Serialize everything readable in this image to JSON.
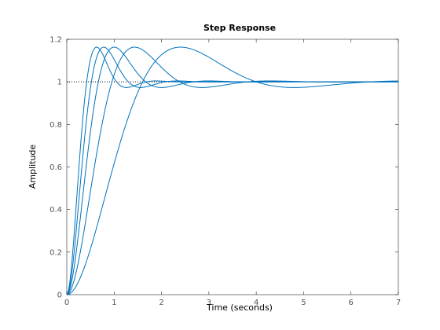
{
  "chart_data": {
    "type": "line",
    "title": "Step Response",
    "xlabel": "Time (seconds)",
    "ylabel": "Amplitude",
    "xlim": [
      0,
      7
    ],
    "ylim": [
      0,
      1.2
    ],
    "x_ticks": [
      0,
      1,
      2,
      3,
      4,
      5,
      6,
      7
    ],
    "x_tick_labels": [
      "0",
      "1",
      "2",
      "3",
      "4",
      "5",
      "6",
      "7"
    ],
    "y_ticks": [
      0,
      0.2,
      0.4,
      0.6,
      0.8,
      1.0,
      1.2
    ],
    "y_tick_labels": [
      "0",
      "0.2",
      "0.4",
      "0.6",
      "0.8",
      "1",
      "1.2"
    ],
    "grid": false,
    "line_color": "#0072bd",
    "reference_line": {
      "y": 1,
      "style": "dotted",
      "color": "#000000"
    },
    "series_model": "second-order step response, damping ratio 0.5",
    "series": [
      {
        "peak_time": 0.63,
        "peak_value": 1.16
      },
      {
        "peak_time": 0.78,
        "peak_value": 1.16
      },
      {
        "peak_time": 1.0,
        "peak_value": 1.16
      },
      {
        "peak_time": 1.43,
        "peak_value": 1.16
      },
      {
        "peak_time": 2.4,
        "peak_value": 1.16
      }
    ]
  }
}
